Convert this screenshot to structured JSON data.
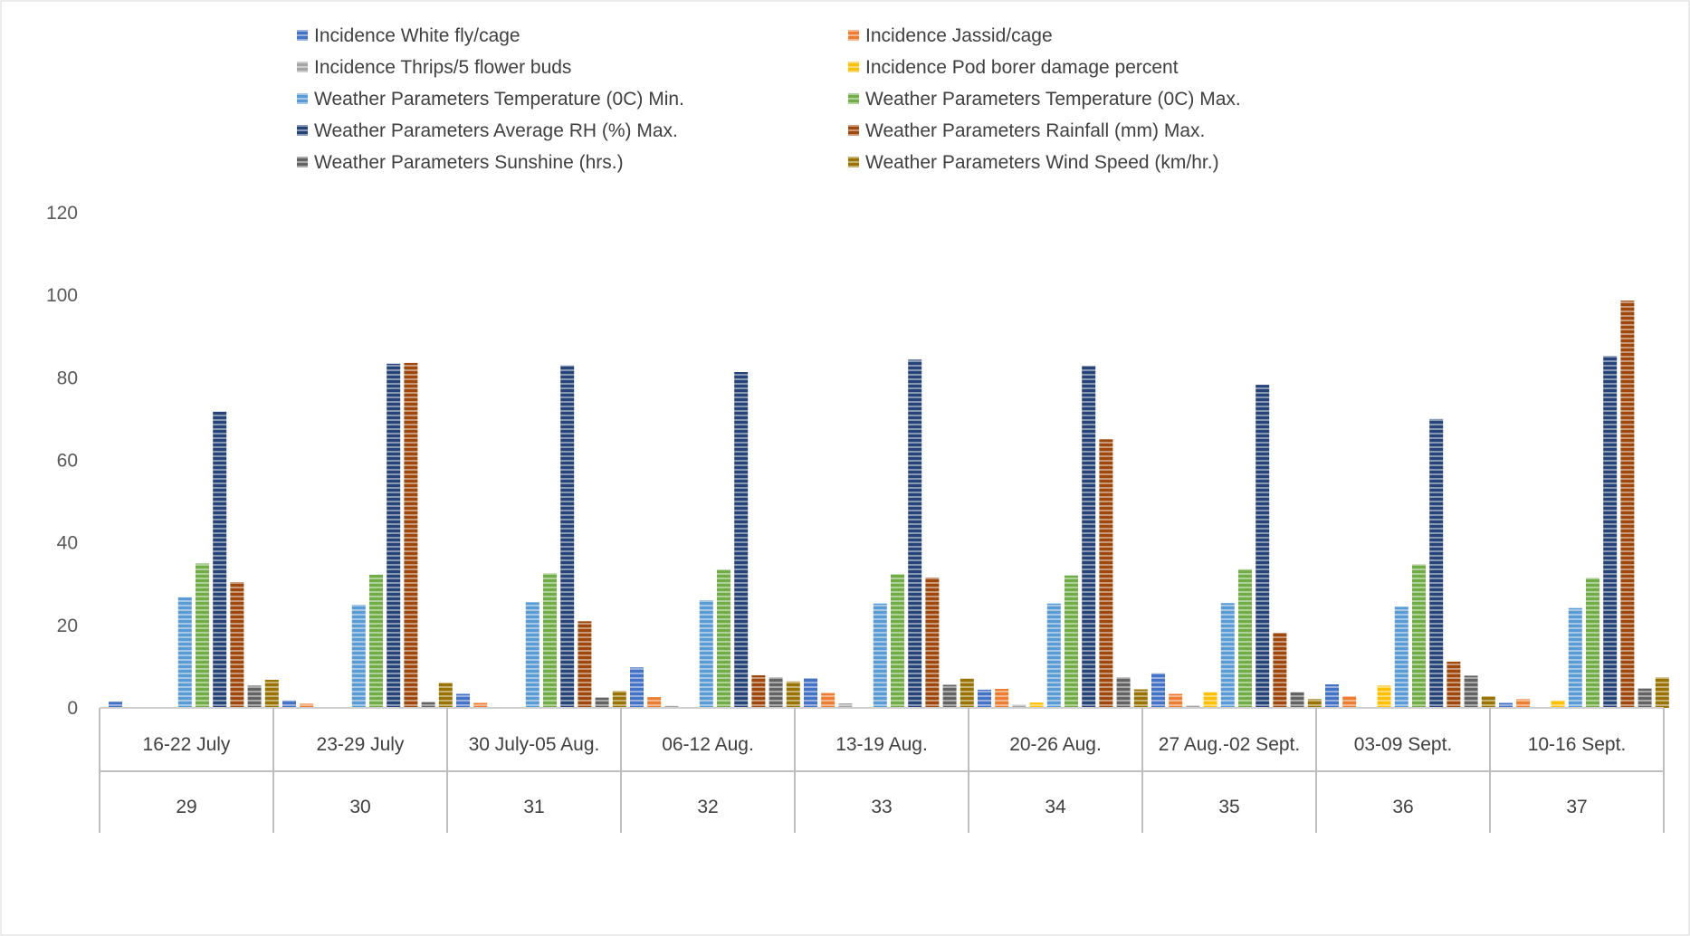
{
  "chart_data": {
    "type": "bar",
    "title": "",
    "xlabel": "",
    "ylabel": "",
    "ylim": [
      0,
      120
    ],
    "yticks": [
      0,
      20,
      40,
      60,
      80,
      100,
      120
    ],
    "grid": false,
    "legend_position": "top",
    "categories": [
      "16-22 July",
      "23-29 July",
      "30 July-05 Aug.",
      "06-12 Aug.",
      "13-19 Aug.",
      "20-26 Aug.",
      "27 Aug.-02 Sept.",
      "03-09 Sept.",
      "10-16 Sept."
    ],
    "category_weeks": [
      "29",
      "30",
      "31",
      "32",
      "33",
      "34",
      "35",
      "36",
      "37"
    ],
    "series": [
      {
        "name": "Incidence White fly/cage",
        "color": "#4472c4",
        "values": [
          1.5,
          1.8,
          3.4,
          9.8,
          7.2,
          4.4,
          8.4,
          5.7,
          1.2
        ]
      },
      {
        "name": "Incidence Jassid/cage",
        "color": "#ed7d31",
        "values": [
          0,
          1.0,
          1.2,
          2.6,
          3.6,
          4.6,
          3.4,
          2.8,
          2.1
        ]
      },
      {
        "name": "Incidence Thrips/5 flower buds",
        "color": "#a5a5a5",
        "values": [
          0,
          0,
          0,
          0.5,
          1.1,
          0.8,
          0.6,
          0,
          0
        ]
      },
      {
        "name": "Incidence  Pod borer damage percent",
        "color": "#ffc000",
        "values": [
          0,
          0,
          0,
          0,
          0,
          1.3,
          3.8,
          5.4,
          1.8
        ]
      },
      {
        "name": "Weather Parameters Temperature (0C) Min.",
        "color": "#5b9bd5",
        "values": [
          26.8,
          25.0,
          25.6,
          26.1,
          25.3,
          25.3,
          25.4,
          24.5,
          24.2
        ]
      },
      {
        "name": "Weather Parameters Temperature (0C) Max.",
        "color": "#70ad47",
        "values": [
          35.0,
          32.3,
          32.6,
          33.5,
          32.4,
          32.1,
          33.6,
          34.8,
          31.5
        ]
      },
      {
        "name": "Weather Parameters Average RH (%) Max.",
        "color": "#264478",
        "values": [
          71.8,
          83.4,
          83.0,
          81.4,
          84.4,
          82.9,
          78.3,
          70.0,
          85.3
        ]
      },
      {
        "name": "Weather Parameters Rainfall (mm) Max.",
        "color": "#9e480e",
        "values": [
          30.5,
          83.6,
          21.0,
          7.9,
          31.6,
          65.1,
          18.2,
          11.2,
          98.7
        ]
      },
      {
        "name": "Weather Parameters Sunshine (hrs.)",
        "color": "#636363",
        "values": [
          5.4,
          1.4,
          2.5,
          7.4,
          5.6,
          7.4,
          3.8,
          7.8,
          4.7
        ]
      },
      {
        "name": "Weather Parameters Wind Speed (km/hr.)",
        "color": "#997300",
        "values": [
          6.8,
          6.1,
          4.1,
          6.4,
          7.1,
          4.5,
          2.1,
          2.8,
          7.4
        ]
      }
    ]
  }
}
